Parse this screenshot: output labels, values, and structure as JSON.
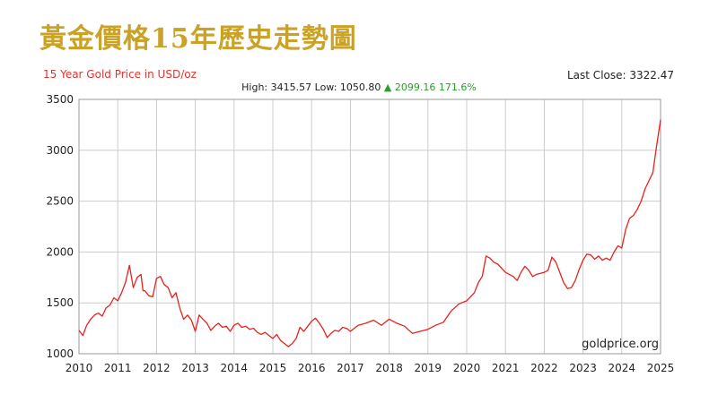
{
  "title": "黃金價格15年歷史走勢圖",
  "subtitle": "15 Year Gold Price in USD/oz",
  "last_close_label": "Last Close:",
  "last_close_value": "3322.47",
  "stats": {
    "high_label": "High:",
    "high": "3415.57",
    "low_label": "Low:",
    "low": "1050.80",
    "arrow": "▲",
    "change": "2099.16",
    "change_pct": "171.6%"
  },
  "watermark": "goldprice.org",
  "colors": {
    "title": "#c9a227",
    "line": "#e8211d",
    "up": "#2a9d2a",
    "grid": "#cccccc"
  },
  "chart_data": {
    "type": "line",
    "title": "15 Year Gold Price in USD/oz",
    "xlabel": "",
    "ylabel": "",
    "xlim": [
      2010,
      2025
    ],
    "ylim": [
      1000,
      3500
    ],
    "x_ticks": [
      "2010",
      "2011",
      "2012",
      "2013",
      "2014",
      "2015",
      "2016",
      "2017",
      "2018",
      "2019",
      "2020",
      "2021",
      "2022",
      "2023",
      "2024",
      "2025"
    ],
    "y_ticks": [
      "1000",
      "1500",
      "2000",
      "2500",
      "3000",
      "3500"
    ],
    "grid": true,
    "series": [
      {
        "x": [
          2010.0,
          2010.1,
          2010.2,
          2010.3,
          2010.4,
          2010.5,
          2010.6,
          2010.7,
          2010.8,
          2010.9,
          2011.0,
          2011.1,
          2011.2,
          2011.3,
          2011.4,
          2011.5,
          2011.6,
          2011.65,
          2011.7,
          2011.8,
          2011.9,
          2012.0,
          2012.1,
          2012.2,
          2012.3,
          2012.4,
          2012.5,
          2012.6,
          2012.7,
          2012.8,
          2012.9,
          2013.0,
          2013.1,
          2013.2,
          2013.3,
          2013.4,
          2013.5,
          2013.6,
          2013.7,
          2013.8,
          2013.9,
          2014.0,
          2014.1,
          2014.2,
          2014.3,
          2014.4,
          2014.5,
          2014.6,
          2014.7,
          2014.8,
          2014.9,
          2015.0,
          2015.1,
          2015.2,
          2015.3,
          2015.4,
          2015.5,
          2015.6,
          2015.7,
          2015.8,
          2015.9,
          2016.0,
          2016.1,
          2016.2,
          2016.3,
          2016.4,
          2016.5,
          2016.6,
          2016.7,
          2016.8,
          2016.9,
          2017.0,
          2017.2,
          2017.4,
          2017.6,
          2017.8,
          2018.0,
          2018.2,
          2018.4,
          2018.6,
          2018.8,
          2019.0,
          2019.2,
          2019.4,
          2019.6,
          2019.8,
          2020.0,
          2020.1,
          2020.2,
          2020.3,
          2020.4,
          2020.5,
          2020.6,
          2020.7,
          2020.8,
          2020.9,
          2021.0,
          2021.1,
          2021.2,
          2021.3,
          2021.4,
          2021.5,
          2021.6,
          2021.7,
          2021.8,
          2021.9,
          2022.0,
          2022.1,
          2022.2,
          2022.3,
          2022.4,
          2022.5,
          2022.6,
          2022.7,
          2022.8,
          2022.9,
          2023.0,
          2023.1,
          2023.2,
          2023.3,
          2023.4,
          2023.5,
          2023.6,
          2023.7,
          2023.8,
          2023.9,
          2024.0,
          2024.1,
          2024.2,
          2024.3,
          2024.4,
          2024.5,
          2024.6,
          2024.7,
          2024.8,
          2024.9,
          2025.0
        ],
        "values": [
          1230,
          1180,
          1280,
          1340,
          1380,
          1400,
          1370,
          1450,
          1480,
          1550,
          1520,
          1600,
          1700,
          1870,
          1650,
          1750,
          1780,
          1620,
          1620,
          1570,
          1560,
          1740,
          1760,
          1680,
          1650,
          1550,
          1600,
          1450,
          1340,
          1380,
          1330,
          1220,
          1380,
          1340,
          1300,
          1230,
          1270,
          1300,
          1260,
          1270,
          1220,
          1280,
          1300,
          1260,
          1270,
          1240,
          1250,
          1210,
          1190,
          1210,
          1180,
          1150,
          1190,
          1130,
          1100,
          1070,
          1100,
          1150,
          1260,
          1220,
          1270,
          1320,
          1350,
          1300,
          1240,
          1160,
          1200,
          1230,
          1220,
          1260,
          1250,
          1220,
          1280,
          1300,
          1330,
          1280,
          1340,
          1300,
          1270,
          1200,
          1220,
          1240,
          1280,
          1310,
          1420,
          1490,
          1520,
          1560,
          1600,
          1700,
          1760,
          1960,
          1940,
          1900,
          1880,
          1840,
          1800,
          1780,
          1760,
          1720,
          1800,
          1860,
          1820,
          1760,
          1780,
          1790,
          1800,
          1820,
          1950,
          1900,
          1800,
          1700,
          1640,
          1650,
          1720,
          1830,
          1920,
          1980,
          1970,
          1930,
          1960,
          1920,
          1940,
          1920,
          2000,
          2060,
          2040,
          2220,
          2330,
          2360,
          2420,
          2500,
          2620,
          2700,
          2780,
          3050,
          3300
        ]
      }
    ]
  }
}
